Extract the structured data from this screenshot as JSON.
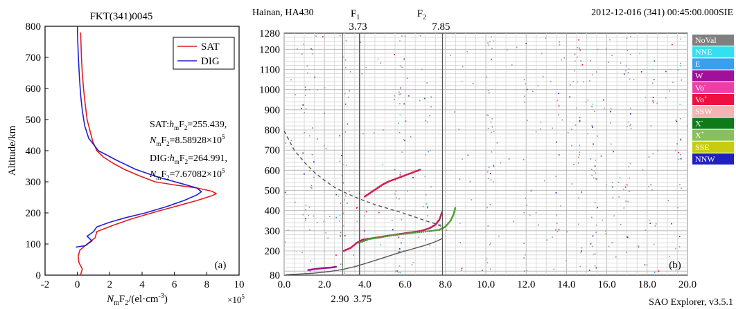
{
  "chart_data": [
    {
      "type": "line",
      "panel_label": "(a)",
      "title": "FKT(341)0045",
      "xlabel": {
        "main": "N",
        "sub1": "m",
        "mid": "F",
        "sub2": "2",
        "tail": "=/(el·cm",
        "sup": "-3",
        "end": ")"
      },
      "xlabel_text": "NmF2/(el·cm-3)",
      "ylabel": "Altitude/km",
      "x_multiplier": {
        "base": "×10",
        "exp": "5"
      },
      "xlim": [
        -2,
        10
      ],
      "ylim": [
        0,
        800
      ],
      "xticks": [
        -2,
        0,
        2,
        4,
        6,
        8,
        10
      ],
      "yticks": [
        0,
        100,
        200,
        300,
        400,
        500,
        600,
        700,
        800
      ],
      "grid": false,
      "legend_position": "top-right",
      "series": [
        {
          "name": "SAT",
          "color": "#e41a1c",
          "points": [
            [
              0.2,
              0
            ],
            [
              0.3,
              20
            ],
            [
              0.1,
              40
            ],
            [
              0.05,
              60
            ],
            [
              0.15,
              80
            ],
            [
              0.6,
              100
            ],
            [
              1.1,
              120
            ],
            [
              1.2,
              140
            ],
            [
              2.2,
              160
            ],
            [
              3.3,
              180
            ],
            [
              4.6,
              200
            ],
            [
              6.0,
              220
            ],
            [
              7.4,
              240
            ],
            [
              8.3,
              255
            ],
            [
              8.59,
              262
            ],
            [
              8.3,
              270
            ],
            [
              7.4,
              280
            ],
            [
              6.0,
              290
            ],
            [
              4.8,
              300
            ],
            [
              3.8,
              320
            ],
            [
              2.9,
              340
            ],
            [
              2.2,
              360
            ],
            [
              1.6,
              380
            ],
            [
              1.2,
              400
            ],
            [
              0.95,
              430
            ],
            [
              0.8,
              460
            ],
            [
              0.6,
              500
            ],
            [
              0.48,
              550
            ],
            [
              0.38,
              600
            ],
            [
              0.3,
              650
            ],
            [
              0.25,
              700
            ],
            [
              0.22,
              750
            ],
            [
              0.2,
              780
            ]
          ]
        },
        {
          "name": "DIG",
          "color": "#1f1fd6",
          "points": [
            [
              -0.1,
              90
            ],
            [
              0.5,
              95
            ],
            [
              0.9,
              110
            ],
            [
              0.6,
              125
            ],
            [
              1.0,
              140
            ],
            [
              1.2,
              155
            ],
            [
              2.0,
              170
            ],
            [
              3.0,
              185
            ],
            [
              4.2,
              200
            ],
            [
              5.5,
              220
            ],
            [
              6.6,
              240
            ],
            [
              7.4,
              258
            ],
            [
              7.67,
              268
            ],
            [
              7.4,
              280
            ],
            [
              6.4,
              295
            ],
            [
              5.0,
              315
            ],
            [
              3.6,
              340
            ],
            [
              2.4,
              370
            ],
            [
              1.3,
              400
            ],
            [
              0.7,
              440
            ],
            [
              0.45,
              480
            ],
            [
              0.3,
              530
            ],
            [
              0.2,
              580
            ],
            [
              0.12,
              640
            ],
            [
              0.06,
              700
            ],
            [
              0.02,
              760
            ],
            [
              0.0,
              800
            ]
          ]
        }
      ],
      "annotation_lines": [
        {
          "prefix": "SAT:",
          "h_m": "h",
          "sub1": "m",
          "F": "F",
          "sub2": "2",
          "val": "=255.439,"
        },
        {
          "N_m": "N",
          "sub1": "m",
          "F": "F",
          "sub2": "2",
          "val": "=8.58928×10",
          "sup": "5"
        },
        {
          "prefix": "DIG:",
          "h_m": "h",
          "sub1": "m",
          "F": "F",
          "sub2": "2",
          "val": "=264.991,"
        },
        {
          "N_m": "N",
          "sub1": "m",
          "F": "F",
          "sub2": "2",
          "val": "=7.67082×10",
          "sup": "5"
        }
      ]
    },
    {
      "type": "scatter",
      "panel_label": "(b)",
      "header_left": "Hainan, HA430",
      "header_right": "2012-12-016 (341) 00:45:00.000SIE",
      "footer_right": "SAO Explorer, v3.5.1",
      "xlim": [
        0,
        20
      ],
      "ylim": [
        80,
        1280
      ],
      "xticks": [
        "0.0",
        "2.0",
        "4.0",
        "6.0",
        "8.0",
        "10.0",
        "12.0",
        "14.0",
        "16.0",
        "18.0",
        "20.0"
      ],
      "xtick_values": [
        0,
        2,
        4,
        6,
        8,
        10,
        12,
        14,
        16,
        18,
        20
      ],
      "yticks": [
        80,
        200,
        300,
        400,
        500,
        600,
        700,
        800,
        900,
        1000,
        1100,
        1200,
        1280
      ],
      "grid": true,
      "markers_top": [
        {
          "label": "F",
          "sub": "1",
          "value": "3.73",
          "x": 3.73
        },
        {
          "label": "F",
          "sub": "2",
          "value": "7.85",
          "x": 7.85
        }
      ],
      "markers_bottom": [
        {
          "value": "2.90",
          "x": 2.9
        },
        {
          "value": "3.75",
          "x": 3.75
        }
      ],
      "legend": [
        {
          "label": "NoVal",
          "color": "#808080"
        },
        {
          "label": "NNE",
          "color": "#33e0f0"
        },
        {
          "label": "E",
          "color": "#3aa0ee"
        },
        {
          "label": "W",
          "color": "#a0109a"
        },
        {
          "label": "Vo",
          "sup": "-",
          "color": "#ee3fa8"
        },
        {
          "label": "Vo",
          "sup": "+",
          "color": "#ee1040"
        },
        {
          "label": "SSW",
          "color": "#f4b4b4"
        },
        {
          "label": "X",
          "sup": "-",
          "color": "#0f7a1a"
        },
        {
          "label": "X",
          "sup": "+",
          "color": "#88c060"
        },
        {
          "label": "SSE",
          "color": "#c8cc10"
        },
        {
          "label": "NNW",
          "color": "#2020c0"
        }
      ],
      "traces": [
        {
          "name": "profile-solid",
          "color": "#555555",
          "style": "solid",
          "points": [
            [
              0.1,
              82
            ],
            [
              0.8,
              86
            ],
            [
              1.5,
              90
            ],
            [
              2.2,
              97
            ],
            [
              2.9,
              108
            ],
            [
              3.5,
              122
            ],
            [
              4.1,
              140
            ],
            [
              4.8,
              162
            ],
            [
              5.5,
              185
            ],
            [
              6.2,
              205
            ],
            [
              6.8,
              222
            ],
            [
              7.3,
              238
            ],
            [
              7.6,
              250
            ],
            [
              7.85,
              262
            ]
          ]
        },
        {
          "name": "profile-dashed",
          "color": "#555555",
          "style": "dashed",
          "points": [
            [
              0.0,
              795
            ],
            [
              0.5,
              700
            ],
            [
              1.0,
              640
            ],
            [
              1.5,
              590
            ],
            [
              2.0,
              550
            ],
            [
              2.5,
              515
            ],
            [
              3.0,
              490
            ],
            [
              3.5,
              468
            ],
            [
              4.0,
              448
            ],
            [
              4.5,
              430
            ],
            [
              5.0,
              415
            ],
            [
              5.5,
              400
            ],
            [
              6.0,
              385
            ],
            [
              6.5,
              368
            ],
            [
              7.0,
              350
            ],
            [
              7.5,
              335
            ],
            [
              7.85,
              320
            ]
          ]
        },
        {
          "name": "trace-O",
          "color": "#c01860",
          "style": "dots",
          "points": [
            [
              2.95,
              200
            ],
            [
              3.3,
              215
            ],
            [
              3.6,
              240
            ],
            [
              3.9,
              256
            ],
            [
              4.3,
              262
            ],
            [
              4.8,
              270
            ],
            [
              5.3,
              278
            ],
            [
              5.8,
              285
            ],
            [
              6.3,
              292
            ],
            [
              6.8,
              300
            ],
            [
              7.2,
              312
            ],
            [
              7.5,
              330
            ],
            [
              7.7,
              355
            ],
            [
              7.85,
              400
            ]
          ]
        },
        {
          "name": "trace-X",
          "color": "#4aa030",
          "style": "dots",
          "points": [
            [
              3.7,
              240
            ],
            [
              4.2,
              258
            ],
            [
              4.8,
              268
            ],
            [
              5.4,
              278
            ],
            [
              6.0,
              285
            ],
            [
              6.6,
              292
            ],
            [
              7.2,
              298
            ],
            [
              7.7,
              305
            ],
            [
              8.0,
              320
            ],
            [
              8.25,
              350
            ],
            [
              8.4,
              380
            ],
            [
              8.5,
              420
            ]
          ]
        },
        {
          "name": "trace-F2-upper",
          "color": "#d01848",
          "style": "dots",
          "points": [
            [
              4.0,
              470
            ],
            [
              4.3,
              490
            ],
            [
              4.6,
              510
            ],
            [
              4.9,
              530
            ],
            [
              5.2,
              545
            ],
            [
              5.6,
              560
            ],
            [
              6.0,
              575
            ],
            [
              6.4,
              590
            ],
            [
              6.8,
              605
            ]
          ]
        },
        {
          "name": "trace-low",
          "color": "#a01090",
          "style": "dots",
          "points": [
            [
              1.2,
              105
            ],
            [
              1.5,
              110
            ],
            [
              1.8,
              113
            ],
            [
              2.1,
              116
            ],
            [
              2.4,
              118
            ],
            [
              2.6,
              122
            ]
          ]
        }
      ]
    }
  ]
}
